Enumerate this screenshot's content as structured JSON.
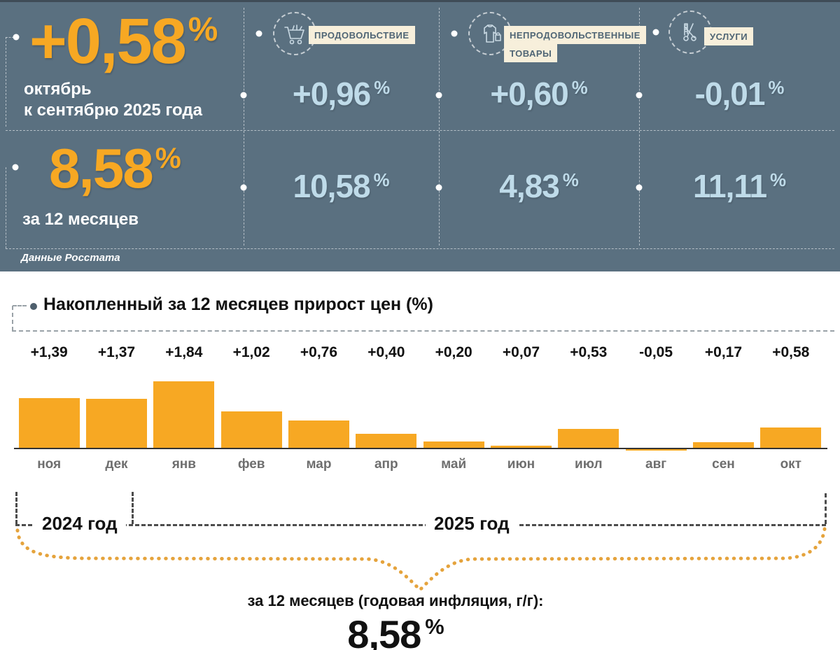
{
  "header": {
    "monthly": {
      "value": "+0,58",
      "percent_sign": "%",
      "period_line1": "октябрь",
      "period_line2": "к сентябрю 2025 года"
    },
    "annual": {
      "value": "8,58",
      "percent_sign": "%",
      "period": "за 12 месяцев"
    },
    "source": "Данные Росстата",
    "categories": [
      {
        "name_line1": "ПРОДОВОЛЬСТВИЕ",
        "name_line2": "",
        "icon": "shopping-cart-icon",
        "monthly_value": "+0,96",
        "monthly_percent": "%",
        "annual_value": "10,58",
        "annual_percent": "%"
      },
      {
        "name_line1": "НЕПРОДОВОЛЬСТВЕННЫЕ",
        "name_line2": "ТОВАРЫ",
        "icon": "clothing-icon",
        "monthly_value": "+0,60",
        "monthly_percent": "%",
        "annual_value": "4,83",
        "annual_percent": "%"
      },
      {
        "name_line1": "УСЛУГИ",
        "name_line2": "",
        "icon": "scissors-comb-icon",
        "monthly_value": "-0,01",
        "monthly_percent": "%",
        "annual_value": "11,11",
        "annual_percent": "%"
      }
    ]
  },
  "chart_data": {
    "type": "bar",
    "title": "Накопленный за 12 месяцев прирост цен (%)",
    "categories": [
      "ноя",
      "дек",
      "янв",
      "фев",
      "мар",
      "апр",
      "май",
      "июн",
      "июл",
      "авг",
      "сен",
      "окт"
    ],
    "values": [
      1.39,
      1.37,
      1.84,
      1.02,
      0.76,
      0.4,
      0.2,
      0.07,
      0.53,
      -0.05,
      0.17,
      0.58
    ],
    "value_labels": [
      "+1,39",
      "+1,37",
      "+1,84",
      "+1,02",
      "+0,76",
      "+0,40",
      "+0,20",
      "+0,07",
      "+0,53",
      "-0,05",
      "+0,17",
      "+0,58"
    ],
    "bar_color": "#F7A823",
    "ylim": [
      -0.1,
      1.9
    ],
    "grid": false,
    "legend": "none",
    "year_groups": [
      {
        "label": "2024 год",
        "from": "ноя",
        "to": "дек"
      },
      {
        "label": "2025 год",
        "from": "янв",
        "to": "окт"
      }
    ]
  },
  "footer": {
    "annotation_label": "за 12 месяцев (годовая инфляция, г/г):",
    "annotation_value": "8,58",
    "annotation_percent": "%"
  },
  "colors": {
    "header_bg": "#5A7080",
    "accent_orange": "#F7A823",
    "value_light_blue": "#BFDBE9",
    "chip_bg": "#F7EFDB",
    "chip_text": "#4F6575",
    "curve_orange": "#E5A33C"
  }
}
